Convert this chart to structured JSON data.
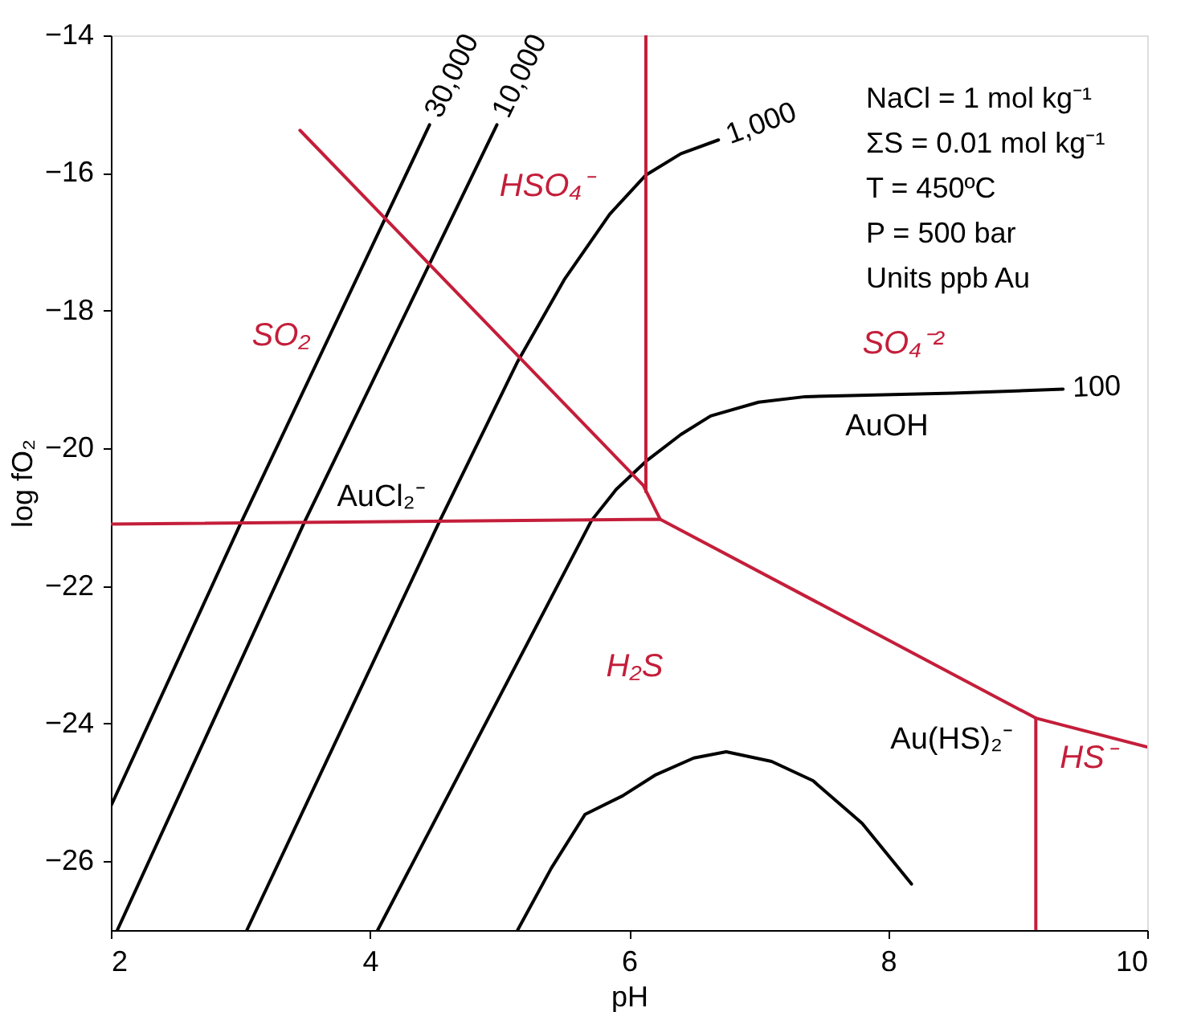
{
  "chart_data": {
    "type": "line",
    "xlabel": "pH",
    "ylabel": "log fO₂",
    "xlim": [
      2,
      10
    ],
    "ylim": [
      -27,
      -14
    ],
    "xticks": [
      2,
      4,
      6,
      8,
      10
    ],
    "yticks": [
      -14,
      -16,
      -18,
      -20,
      -22,
      -24,
      -26
    ],
    "grid": false,
    "legend": false,
    "marker": "none",
    "line_style": "solid",
    "series": [
      {
        "name": "30,000",
        "color": "#000000",
        "x": [
          2.0,
          3.0,
          4.46
        ],
        "values": [
          -25.2,
          -21.1,
          -15.3
        ]
      },
      {
        "name": "10,000",
        "color": "#000000",
        "x": [
          2.05,
          3.5,
          4.98
        ],
        "values": [
          -27.0,
          -21.05,
          -15.3
        ]
      },
      {
        "name": "1,000",
        "color": "#000000",
        "x": [
          3.05,
          4.54,
          5.14,
          5.5,
          5.85,
          6.13,
          6.4,
          6.69
        ],
        "values": [
          -27.0,
          -21.05,
          -18.74,
          -17.55,
          -16.6,
          -16.03,
          -15.72,
          -15.52
        ]
      },
      {
        "name": "100",
        "color": "#000000",
        "x": [
          4.06,
          5.71,
          5.9,
          6.13,
          6.4,
          6.63,
          7.0,
          7.36,
          8.5,
          9.35
        ],
        "values": [
          -27.0,
          -21.05,
          -20.6,
          -20.19,
          -19.8,
          -19.53,
          -19.33,
          -19.25,
          -19.2,
          -19.14
        ]
      },
      {
        "color": "#000000",
        "x": [
          5.14,
          5.4,
          5.66,
          5.95,
          6.2,
          6.5,
          6.75,
          7.1,
          7.42,
          7.8,
          8.18
        ],
        "values": [
          -27.0,
          -26.1,
          -25.32,
          -25.05,
          -24.75,
          -24.5,
          -24.41,
          -24.55,
          -24.83,
          -25.45,
          -26.33
        ]
      },
      {
        "color": "#c41e3a",
        "x": [
          3.46,
          6.11,
          6.24
        ],
        "values": [
          -15.38,
          -20.54,
          -21.03
        ]
      },
      {
        "color": "#c41e3a",
        "x": [
          6.13,
          6.13
        ],
        "values": [
          -14.0,
          -20.63
        ]
      },
      {
        "color": "#c41e3a",
        "x": [
          2.0,
          6.24,
          9.14,
          10.0
        ],
        "values": [
          -21.1,
          -21.03,
          -23.92,
          -24.34
        ]
      },
      {
        "color": "#c41e3a",
        "x": [
          9.14,
          9.14
        ],
        "values": [
          -23.92,
          -27.0
        ]
      }
    ],
    "annotations": [
      "SO₂",
      "HSO₄⁻",
      "SO₄⁻²",
      "H₂S",
      "HS⁻",
      "AuCl₂⁻",
      "AuOH",
      "Au(HS)₂⁻",
      "NaCl = 1 mol kg⁻¹",
      "ΣS = 0.01 mol kg⁻¹",
      "T = 450ºC",
      "P = 500 bar",
      "Units ppb Au"
    ]
  }
}
